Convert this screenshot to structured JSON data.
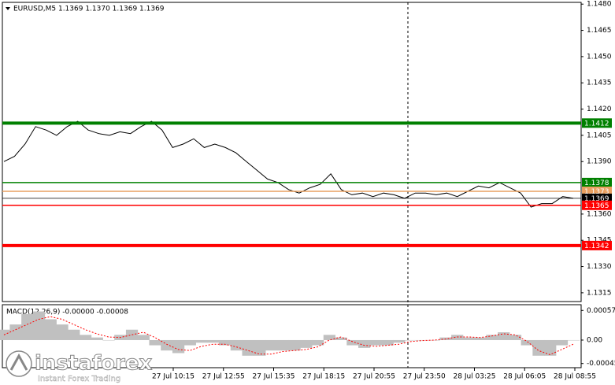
{
  "chart_data": [
    {
      "type": "price",
      "title": "EURUSD,M5  1.1369 1.1370 1.1369 1.1369",
      "color": "#000000",
      "values": [
        1.139,
        1.1393,
        1.14,
        1.141,
        1.1408,
        1.1405,
        1.141,
        1.1413,
        1.1408,
        1.1406,
        1.1405,
        1.1407,
        1.1406,
        1.141,
        1.1413,
        1.1408,
        1.1398,
        1.14,
        1.1403,
        1.1398,
        1.14,
        1.1398,
        1.1395,
        1.139,
        1.1385,
        1.138,
        1.1378,
        1.1374,
        1.1372,
        1.1375,
        1.1377,
        1.1383,
        1.1374,
        1.1371,
        1.1372,
        1.137,
        1.1372,
        1.1371,
        1.1369,
        1.1372,
        1.1372,
        1.1371,
        1.1372,
        1.137,
        1.1373,
        1.1376,
        1.1375,
        1.1378,
        1.1375,
        1.1372,
        1.1364,
        1.1366,
        1.1366,
        1.137,
        1.1369
      ],
      "ylim": [
        1.131,
        1.1481
      ],
      "yticks": [
        {
          "value": 1.148,
          "label": "1.1480"
        },
        {
          "value": 1.1465,
          "label": "1.1465"
        },
        {
          "value": 1.145,
          "label": "1.1450"
        },
        {
          "value": 1.1435,
          "label": "1.1435"
        },
        {
          "value": 1.142,
          "label": "1.1420"
        },
        {
          "value": 1.1405,
          "label": "1.1405"
        },
        {
          "value": 1.139,
          "label": "1.1390"
        },
        {
          "value": 1.136,
          "label": "1.1360"
        },
        {
          "value": 1.1345,
          "label": "1.1345"
        },
        {
          "value": 1.133,
          "label": "1.1330"
        },
        {
          "value": 1.1315,
          "label": "1.1315"
        }
      ],
      "levels": [
        {
          "value": 1.1412,
          "color": "#008000",
          "style": "thick"
        },
        {
          "value": 1.1378,
          "color": "#008000",
          "style": "thin"
        },
        {
          "value": 1.1373,
          "color": "#e8a060",
          "style": "thin"
        },
        {
          "value": 1.1369,
          "color": "#000000",
          "style": "hair"
        },
        {
          "value": 1.1365,
          "color": "#ff0000",
          "style": "thin"
        },
        {
          "value": 1.1342,
          "color": "#ff0000",
          "style": "thick"
        }
      ],
      "x_labels": [
        "27 Jul 10:15",
        "27 Jul 12:55",
        "27 Jul 15:35",
        "27 Jul 18:15",
        "27 Jul 20:55",
        "27 Jul 23:50",
        "28 Jul 03:25",
        "28 Jul 06:05",
        "28 Jul 08:55"
      ],
      "watermark": "instaforex",
      "watermark_subtitle": "Instant Forex Trading"
    },
    {
      "type": "macd",
      "title": "MACD(12,26,9) -0.00000 -0.00008",
      "histogram_color": "#c0c0c0",
      "signal_color": "#ff0000",
      "histogram": [
        0.0002,
        0.0003,
        0.0005,
        0.00055,
        0.0004,
        0.0003,
        0.0002,
        0.0001,
        5e-05,
        0.0,
        0.0001,
        0.0002,
        0.0001,
        -0.0001,
        -0.0002,
        -0.00025,
        -0.0001,
        -5e-05,
        -5e-05,
        -0.0001,
        -0.0002,
        -0.0003,
        -0.0003,
        -0.0002,
        -0.0002,
        -0.0002,
        -0.00015,
        -0.0001,
        0.0001,
        5e-05,
        -0.0001,
        -0.00015,
        -0.0001,
        -0.0001,
        -5e-05,
        0.0,
        0.0,
        0.0,
        5e-05,
        0.0001,
        5e-05,
        5e-05,
        0.0001,
        0.00015,
        0.0001,
        -0.0001,
        -0.0003,
        -0.0003,
        -0.0001,
        0.0
      ],
      "signal": [
        0.0001,
        0.0002,
        0.0003,
        0.0004,
        0.00045,
        0.0004,
        0.0003,
        0.0002,
        0.00012,
        6e-05,
        5e-05,
        0.0001,
        0.00015,
        5e-05,
        -8e-05,
        -0.00018,
        -0.0002,
        -0.00012,
        -8e-05,
        -8e-05,
        -0.00013,
        -0.0002,
        -0.00027,
        -0.00027,
        -0.00022,
        -0.0002,
        -0.00018,
        -0.00013,
        0.0,
        6e-05,
        -3e-05,
        -0.0001,
        -0.00012,
        -0.0001,
        -8e-05,
        -3e-05,
        -1e-05,
        0.0,
        2e-05,
        6e-05,
        6e-05,
        5e-05,
        8e-05,
        0.00012,
        0.0001,
        -2e-05,
        -0.0002,
        -0.00028,
        -0.00018,
        -8e-05
      ],
      "ylim": [
        -0.00053,
        0.00068
      ],
      "yticks": [
        0.00057,
        {
          "value": 0.0,
          "label": "0.00"
        },
        -0.00045
      ]
    }
  ]
}
